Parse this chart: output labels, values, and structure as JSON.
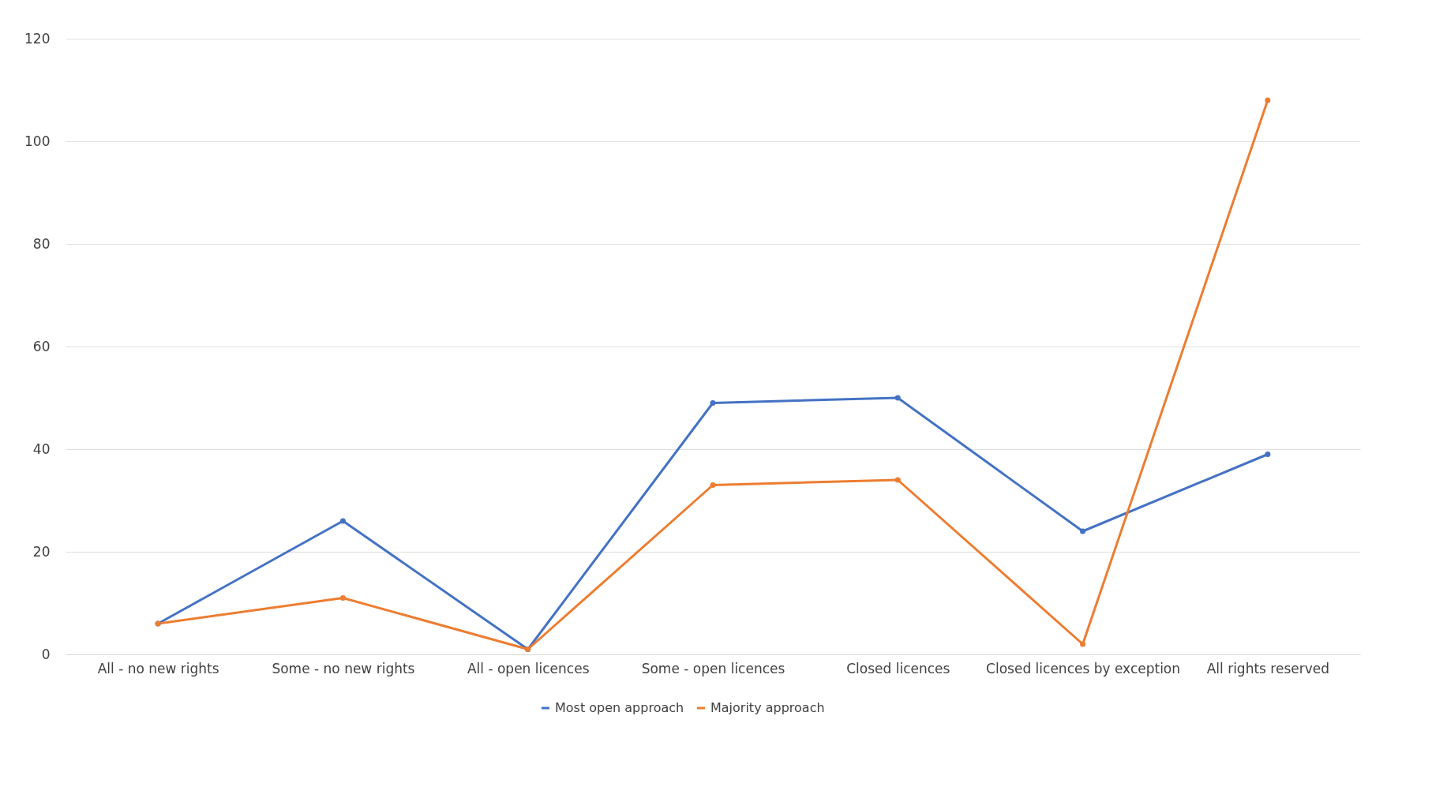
{
  "chart_data": {
    "type": "line",
    "categories": [
      "All - no new rights",
      "Some - no new rights",
      "All - open licences",
      "Some - open licences",
      "Closed licences",
      "Closed licences by exception",
      "All rights reserved"
    ],
    "series": [
      {
        "name": "Most open approach",
        "color": "#4472c4",
        "values": [
          6,
          26,
          1,
          49,
          50,
          24,
          39
        ]
      },
      {
        "name": "Majority approach",
        "color": "#ed7d31",
        "values": [
          6,
          11,
          1,
          33,
          34,
          2,
          108
        ]
      }
    ],
    "ylim": [
      0,
      120
    ],
    "yticks": [
      0,
      20,
      40,
      60,
      80,
      100,
      120
    ],
    "grid": "y",
    "legend": "bottom",
    "marker": "circle",
    "line_style": "solid"
  }
}
